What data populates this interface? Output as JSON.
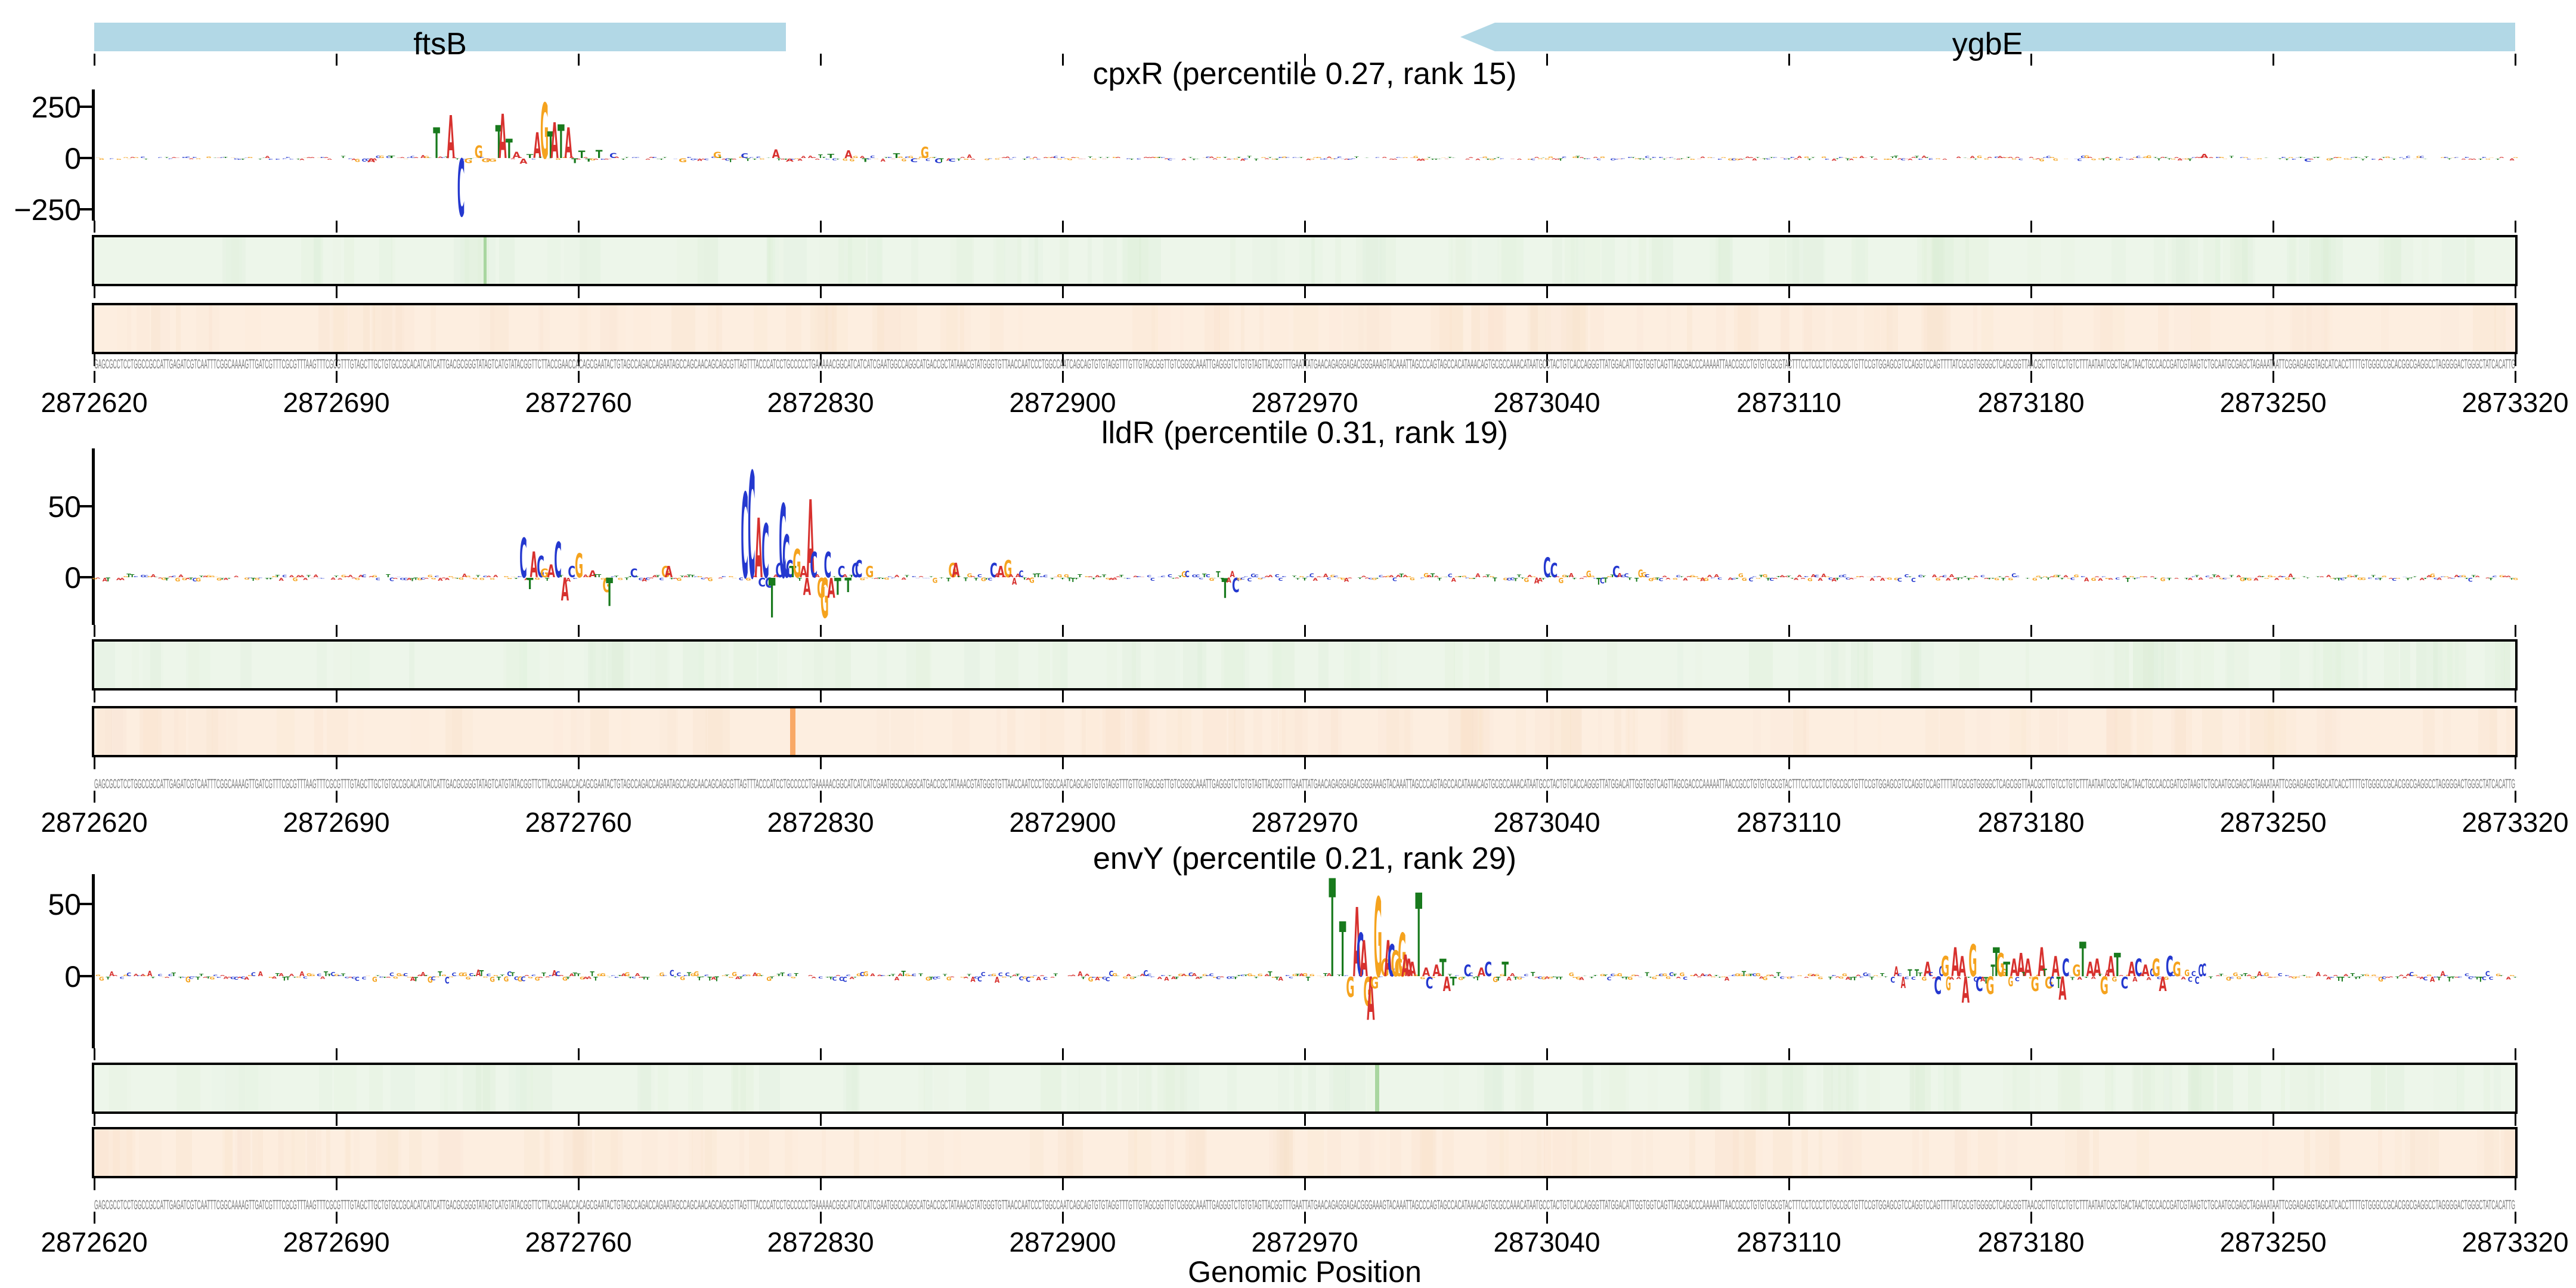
{
  "chart_data": {
    "type": "logo-attribution-tracks",
    "axis": {
      "xmin": 2872620,
      "xmax": 2873320,
      "tick_step": 70,
      "tick_labels": [
        "2872620",
        "2872690",
        "2872760",
        "2872830",
        "2872900",
        "2872970",
        "2873040",
        "2873110",
        "2873180",
        "2873250",
        "2873320"
      ],
      "xlabel": "Genomic Position"
    },
    "genes": [
      {
        "name": "ftsB",
        "start": 2872620,
        "end": 2872820,
        "shape": "rect"
      },
      {
        "name": "ygbE",
        "start": 2873015,
        "end": 2873320,
        "shape": "arrow-left"
      }
    ],
    "gene_fill": "#b2d8e6",
    "base_colors": {
      "A": "#d7312e",
      "C": "#2438cf",
      "G": "#f5a31e",
      "T": "#187a1d"
    },
    "panels": [
      {
        "id": "cpxR",
        "title": "cpxR (percentile 0.27, rank 15)",
        "yticks": [
          {
            "label": "250",
            "value": 250
          },
          {
            "label": "0",
            "value": 0
          },
          {
            "label": "−250",
            "value": -250
          }
        ],
        "noise": {
          "seed": 11,
          "amplitude": 11,
          "zones": [
            [
              2872690,
              2872725,
              1.8
            ],
            [
              2872795,
              2872875,
              2.0
            ],
            [
              2873140,
              2873230,
              1.3
            ]
          ]
        },
        "peaks": [
          [
            2872700,
            "A",
            -18
          ],
          [
            2872706,
            "T",
            12
          ],
          [
            2872719,
            "T",
            150
          ],
          [
            2872723,
            "A",
            210
          ],
          [
            2872726,
            "C",
            -280
          ],
          [
            2872728,
            "G",
            -22
          ],
          [
            2872731,
            "G",
            60
          ],
          [
            2872733,
            "G",
            -18
          ],
          [
            2872735,
            "G",
            -14
          ],
          [
            2872737,
            "T",
            160
          ],
          [
            2872738,
            "A",
            215
          ],
          [
            2872740,
            "T",
            95
          ],
          [
            2872742,
            "A",
            30
          ],
          [
            2872744,
            "A",
            -25
          ],
          [
            2872746,
            "T",
            18
          ],
          [
            2872748,
            "A",
            125
          ],
          [
            2872750,
            "G",
            270
          ],
          [
            2872752,
            "T",
            130
          ],
          [
            2872753,
            "A",
            175
          ],
          [
            2872755,
            "T",
            165
          ],
          [
            2872757,
            "A",
            150
          ],
          [
            2872759,
            "T",
            -22
          ],
          [
            2872761,
            "T",
            35
          ],
          [
            2872763,
            "T",
            -15
          ],
          [
            2872766,
            "T",
            40
          ],
          [
            2872770,
            "C",
            25
          ],
          [
            2872790,
            "G",
            -18
          ],
          [
            2872800,
            "G",
            30
          ],
          [
            2872808,
            "C",
            22
          ],
          [
            2872817,
            "A",
            42
          ],
          [
            2872821,
            "A",
            -14
          ],
          [
            2872833,
            "T",
            20
          ],
          [
            2872838,
            "A",
            38
          ],
          [
            2872843,
            "T",
            -16
          ],
          [
            2872852,
            "T",
            22
          ],
          [
            2872857,
            "C",
            -18
          ],
          [
            2872860,
            "G",
            55
          ],
          [
            2872864,
            "C",
            -22
          ],
          [
            2872868,
            "C",
            -15
          ],
          [
            2873230,
            "A",
            20
          ],
          [
            2873260,
            "C",
            -14
          ]
        ],
        "green_strip": {
          "bg": "#edf6ea",
          "band": "#d7ecd2",
          "markers": [
            {
              "pos": 2872733,
              "color": "#a9d6a0",
              "width": 5
            }
          ]
        },
        "orange_strip": {
          "bg": "#fdeee0",
          "band": "#f8dfc6",
          "markers": []
        }
      },
      {
        "id": "lldR",
        "title": "lldR (percentile 0.31, rank 19)",
        "yticks": [
          {
            "label": "50",
            "value": 50
          },
          {
            "label": "0",
            "value": 0
          }
        ],
        "noise": {
          "seed": 23,
          "amplitude": 3.2,
          "zones": [
            [
              2872860,
              2872895,
              1.8
            ],
            [
              2872935,
              2872960,
              1.6
            ],
            [
              2873030,
              2873070,
              1.8
            ]
          ]
        },
        "peaks": [
          [
            2872744,
            "C",
            28
          ],
          [
            2872746,
            "T",
            -8
          ],
          [
            2872747,
            "A",
            18
          ],
          [
            2872749,
            "C",
            15
          ],
          [
            2872750,
            "G",
            6
          ],
          [
            2872752,
            "A",
            9
          ],
          [
            2872754,
            "C",
            25
          ],
          [
            2872756,
            "A",
            -16
          ],
          [
            2872758,
            "C",
            8
          ],
          [
            2872760,
            "G",
            17
          ],
          [
            2872764,
            "A",
            5
          ],
          [
            2872768,
            "G",
            -10
          ],
          [
            2872769,
            "T",
            -20
          ],
          [
            2872776,
            "C",
            6
          ],
          [
            2872785,
            "G",
            8
          ],
          [
            2872786,
            "A",
            8
          ],
          [
            2872808,
            "C",
            60
          ],
          [
            2872810,
            "C",
            75
          ],
          [
            2872812,
            "A",
            42
          ],
          [
            2872813,
            "C",
            -6
          ],
          [
            2872814,
            "C",
            38
          ],
          [
            2872815,
            "C",
            -7
          ],
          [
            2872816,
            "T",
            -28
          ],
          [
            2872818,
            "C",
            10
          ],
          [
            2872819,
            "C",
            52
          ],
          [
            2872820,
            "C",
            30
          ],
          [
            2872821,
            "C",
            12
          ],
          [
            2872822,
            "T",
            8
          ],
          [
            2872823,
            "G",
            20
          ],
          [
            2872825,
            "A",
            8
          ],
          [
            2872826,
            "A",
            -12
          ],
          [
            2872827,
            "A",
            55
          ],
          [
            2872828,
            "C",
            18
          ],
          [
            2872830,
            "G",
            -14
          ],
          [
            2872831,
            "G",
            -28
          ],
          [
            2872832,
            "C",
            18
          ],
          [
            2872833,
            "A",
            -14
          ],
          [
            2872835,
            "T",
            -12
          ],
          [
            2872836,
            "C",
            8
          ],
          [
            2872838,
            "T",
            -10
          ],
          [
            2872840,
            "C",
            10
          ],
          [
            2872841,
            "C",
            12
          ],
          [
            2872844,
            "G",
            8
          ],
          [
            2872868,
            "G",
            10
          ],
          [
            2872869,
            "A",
            10
          ],
          [
            2872880,
            "C",
            10
          ],
          [
            2872882,
            "A",
            8
          ],
          [
            2872884,
            "G",
            12
          ],
          [
            2872947,
            "T",
            -14
          ],
          [
            2872950,
            "C",
            -10
          ],
          [
            2873040,
            "C",
            14
          ],
          [
            2873042,
            "C",
            10
          ],
          [
            2873060,
            "C",
            8
          ]
        ],
        "green_strip": {
          "bg": "#edf6ea",
          "band": "#d7ecd2",
          "markers": []
        },
        "orange_strip": {
          "bg": "#fdeee0",
          "band": "#f8dfc6",
          "markers": [
            {
              "pos": 2872822,
              "color": "#f8a866",
              "width": 9
            }
          ]
        }
      },
      {
        "id": "envY",
        "title": "envY (percentile 0.21, rank 29)",
        "yticks": [
          {
            "label": "50",
            "value": 50
          },
          {
            "label": "0",
            "value": 0
          }
        ],
        "noise": {
          "seed": 37,
          "amplitude": 4.2,
          "zones": [
            [
              2873140,
              2873230,
              2.4
            ],
            [
              2872700,
              2872800,
              1.3
            ]
          ]
        },
        "peaks": [
          [
            2872978,
            "T",
            68
          ],
          [
            2872981,
            "T",
            38
          ],
          [
            2872983,
            "G",
            -14
          ],
          [
            2872985,
            "A",
            48
          ],
          [
            2872986,
            "C",
            30
          ],
          [
            2872987,
            "A",
            25
          ],
          [
            2872988,
            "G",
            -20
          ],
          [
            2872989,
            "A",
            -30
          ],
          [
            2872990,
            "G",
            -8
          ],
          [
            2872991,
            "G",
            55
          ],
          [
            2872993,
            "G",
            12
          ],
          [
            2872994,
            "A",
            25
          ],
          [
            2872995,
            "C",
            22
          ],
          [
            2872996,
            "G",
            18
          ],
          [
            2872997,
            "G",
            12
          ],
          [
            2872998,
            "G",
            30
          ],
          [
            2872999,
            "A",
            15
          ],
          [
            2873000,
            "A",
            12
          ],
          [
            2873001,
            "A",
            10
          ],
          [
            2873003,
            "T",
            58
          ],
          [
            2873005,
            "A",
            6
          ],
          [
            2873006,
            "C",
            -8
          ],
          [
            2873008,
            "A",
            8
          ],
          [
            2873010,
            "T",
            12
          ],
          [
            2873011,
            "A",
            -10
          ],
          [
            2873013,
            "T",
            -6
          ],
          [
            2873017,
            "C",
            8
          ],
          [
            2873021,
            "A",
            6
          ],
          [
            2873023,
            "C",
            10
          ],
          [
            2873028,
            "T",
            10
          ],
          [
            2873150,
            "A",
            10
          ],
          [
            2873153,
            "C",
            -12
          ],
          [
            2873155,
            "G",
            14
          ],
          [
            2873158,
            "A",
            20
          ],
          [
            2873160,
            "A",
            14
          ],
          [
            2873161,
            "A",
            -18
          ],
          [
            2873163,
            "G",
            22
          ],
          [
            2873165,
            "C",
            -10
          ],
          [
            2873168,
            "G",
            -12
          ],
          [
            2873170,
            "T",
            20
          ],
          [
            2873171,
            "G",
            16
          ],
          [
            2873173,
            "T",
            10
          ],
          [
            2873175,
            "A",
            12
          ],
          [
            2873177,
            "A",
            16
          ],
          [
            2873179,
            "A",
            12
          ],
          [
            2873181,
            "G",
            -10
          ],
          [
            2873183,
            "A",
            20
          ],
          [
            2873185,
            "G",
            -8
          ],
          [
            2873187,
            "A",
            14
          ],
          [
            2873189,
            "A",
            -16
          ],
          [
            2873190,
            "C",
            12
          ],
          [
            2873193,
            "G",
            8
          ],
          [
            2873195,
            "T",
            24
          ],
          [
            2873197,
            "A",
            10
          ],
          [
            2873199,
            "A",
            12
          ],
          [
            2873201,
            "G",
            -12
          ],
          [
            2873203,
            "A",
            14
          ],
          [
            2873205,
            "T",
            16
          ],
          [
            2873207,
            "C",
            -8
          ],
          [
            2873209,
            "A",
            10
          ],
          [
            2873211,
            "C",
            12
          ],
          [
            2873213,
            "A",
            8
          ],
          [
            2873216,
            "G",
            12
          ],
          [
            2873218,
            "A",
            -10
          ],
          [
            2873220,
            "C",
            14
          ],
          [
            2873222,
            "G",
            10
          ]
        ],
        "green_strip": {
          "bg": "#edf6ea",
          "band": "#d7ecd2",
          "markers": [
            {
              "pos": 2872991,
              "color": "#a9d6a0",
              "width": 7
            }
          ]
        },
        "orange_strip": {
          "bg": "#fdeee0",
          "band": "#f8dfc6",
          "markers": []
        }
      }
    ]
  },
  "sequence": {
    "color": "#7a7a7a",
    "fragment_start": "GAGCGCCTCCTGGCCGCCATTGAGATCGTCAATTTCGGCAAAAGTTGATCGTTTCGCGTTTAAGTTTCGCGTTTGTAGCTTGCTGTGCCGCACATCATCATTGACGCGGGTATAGTCATGTATACGGTTCTTACCGAACCACAGCGAATACTGTAGCCAGACCAGAATAGCCAGCAACAGCAGCGTTAGTTTACCCATCCTGCCCCCTGAAAAACGGCATCATCATCG",
    "fragment_mid": "TAGTTACGGTTTGAATTATGAACAGAGGAGACGGGAAAGTACAAATTAGCCCAGTAGCCACATAAACAGTGCGCCAAACATAATGCCTACTGTCACCAGGGT"
  }
}
